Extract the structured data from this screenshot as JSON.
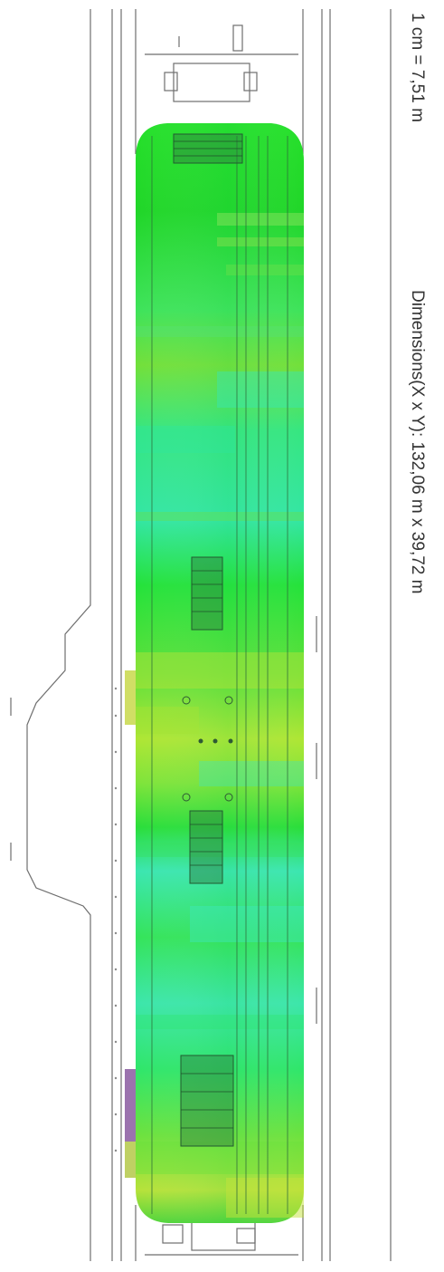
{
  "map": {
    "scale_label": "1 cm = 7,51 m",
    "dimensions_label": "Dimensions(X x Y): 132,06 m x 39,72 m"
  },
  "colors": {
    "background": "#ffffff",
    "line": "#6e6e6e",
    "heat_green": "#22e52a",
    "heat_green_dark": "#16c81c",
    "heat_cyan": "#2fe6a6",
    "heat_yellow": "#c8e82a",
    "heat_purple": "#8a5aa0",
    "structure": "#2e6b3a"
  }
}
